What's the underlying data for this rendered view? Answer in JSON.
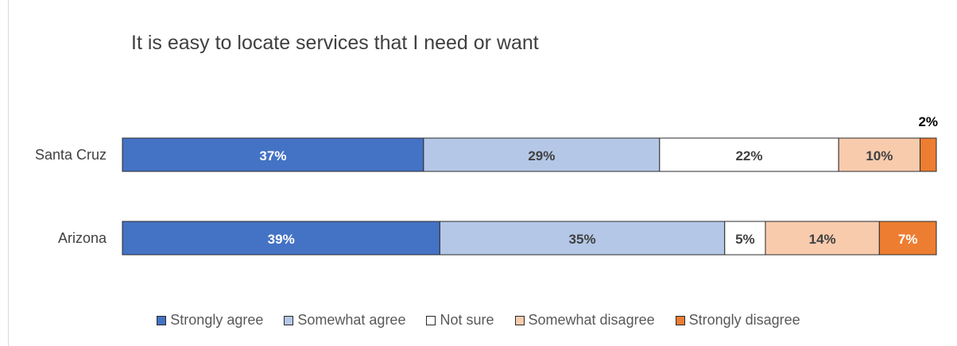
{
  "chart_data": {
    "type": "bar",
    "orientation": "horizontal",
    "stacked": true,
    "title": "It is easy to locate services that I need or want",
    "categories": [
      "Santa Cruz",
      "Arizona"
    ],
    "series": [
      {
        "name": "Strongly agree",
        "color": "#4472c4",
        "label_color": "#ffffff",
        "values": [
          37,
          39
        ],
        "labels": [
          "37%",
          "39%"
        ]
      },
      {
        "name": "Somewhat agree",
        "color": "#b4c7e7",
        "label_color": "#404040",
        "values": [
          29,
          35
        ],
        "labels": [
          "29%",
          "35%"
        ]
      },
      {
        "name": "Not sure",
        "color": "#ffffff",
        "label_color": "#404040",
        "values": [
          22,
          5
        ],
        "labels": [
          "22%",
          "5%"
        ]
      },
      {
        "name": "Somewhat disagree",
        "color": "#f8cbad",
        "label_color": "#404040",
        "values": [
          10,
          14
        ],
        "labels": [
          "10%",
          "14%"
        ]
      },
      {
        "name": "Strongly disagree",
        "color": "#ed7d31",
        "label_color": "#ffffff",
        "values": [
          2,
          7
        ],
        "labels": [
          "2%",
          "7%"
        ]
      }
    ],
    "xlim": [
      0,
      100
    ],
    "grid": false,
    "legend_position": "bottom"
  }
}
